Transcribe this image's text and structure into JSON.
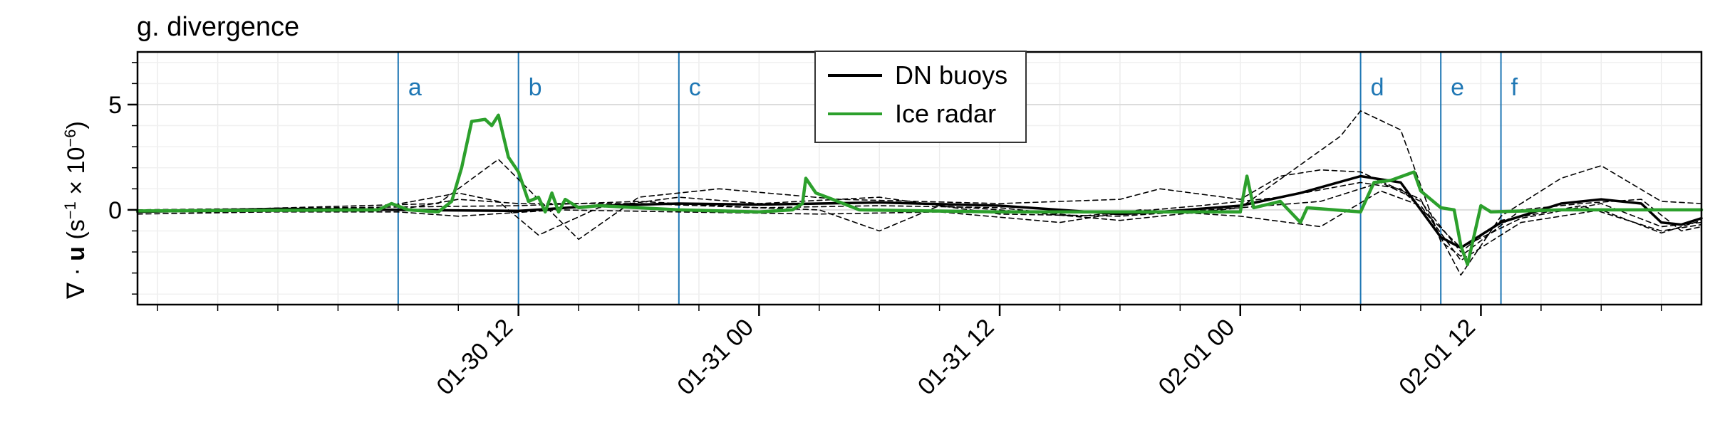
{
  "chart_data": {
    "type": "line",
    "title": "g. divergence",
    "ylabel": {
      "symbol_prefix": "∇ · ",
      "symbol_bold": "u",
      "units_open": " (s",
      "units_exp1": "−1",
      "units_times": " × 10",
      "units_exp2": "−6",
      "units_close": ")"
    },
    "xlim": [
      "2020-01-29 17:00",
      "2020-02-01 23:00"
    ],
    "ylim": [
      -4.5,
      7.5
    ],
    "yticks": [
      0,
      5
    ],
    "xticks": [
      {
        "t": "2020-01-30 12:00",
        "label": "01-30 12"
      },
      {
        "t": "2020-01-31 00:00",
        "label": "01-31 00"
      },
      {
        "t": "2020-01-31 12:00",
        "label": "01-31 12"
      },
      {
        "t": "2020-02-01 00:00",
        "label": "02-01 00"
      },
      {
        "t": "2020-02-01 12:00",
        "label": "02-01 12"
      }
    ],
    "grid": true,
    "legend_position": "top-center",
    "events": [
      {
        "label": "a",
        "t": "2020-01-30 06:00"
      },
      {
        "label": "b",
        "t": "2020-01-30 12:00"
      },
      {
        "label": "c",
        "t": "2020-01-30 20:00"
      },
      {
        "label": "d",
        "t": "2020-02-01 06:00"
      },
      {
        "label": "e",
        "t": "2020-02-01 10:00"
      },
      {
        "label": "f",
        "t": "2020-02-01 13:00"
      }
    ],
    "event_color": "#1f77b4",
    "series": [
      {
        "name": "DN buoys",
        "color": "#000000",
        "style": "solid",
        "width": 3.5,
        "points": [
          [
            "2020-01-29 17:00",
            -0.1
          ],
          [
            "2020-01-30 00:00",
            0.05
          ],
          [
            "2020-01-30 06:00",
            0.0
          ],
          [
            "2020-01-30 12:00",
            -0.05
          ],
          [
            "2020-01-30 16:00",
            0.2
          ],
          [
            "2020-01-30 20:00",
            0.3
          ],
          [
            "2020-01-31 00:00",
            0.25
          ],
          [
            "2020-01-31 06:00",
            0.35
          ],
          [
            "2020-01-31 12:00",
            0.2
          ],
          [
            "2020-01-31 15:00",
            0.0
          ],
          [
            "2020-01-31 18:00",
            -0.2
          ],
          [
            "2020-01-31 20:00",
            -0.1
          ],
          [
            "2020-02-01 00:00",
            0.2
          ],
          [
            "2020-02-01 03:00",
            0.8
          ],
          [
            "2020-02-01 06:00",
            1.6
          ],
          [
            "2020-02-01 08:00",
            1.3
          ],
          [
            "2020-02-01 10:00",
            -1.3
          ],
          [
            "2020-02-01 11:00",
            -1.8
          ],
          [
            "2020-02-01 13:00",
            -0.6
          ],
          [
            "2020-02-01 16:00",
            0.3
          ],
          [
            "2020-02-01 18:00",
            0.5
          ],
          [
            "2020-02-01 20:00",
            0.3
          ],
          [
            "2020-02-01 21:00",
            -0.6
          ],
          [
            "2020-02-01 22:00",
            -0.7
          ],
          [
            "2020-02-01 23:00",
            -0.4
          ]
        ]
      },
      {
        "name": "Ice radar",
        "color": "#2ca02c",
        "style": "solid",
        "width": 4.5,
        "points": [
          [
            "2020-01-29 17:00",
            -0.05
          ],
          [
            "2020-01-30 05:00",
            0.0
          ],
          [
            "2020-01-30 05:40",
            0.3
          ],
          [
            "2020-01-30 06:30",
            0.0
          ],
          [
            "2020-01-30 08:00",
            -0.1
          ],
          [
            "2020-01-30 08:40",
            0.4
          ],
          [
            "2020-01-30 09:10",
            2.0
          ],
          [
            "2020-01-30 09:40",
            4.2
          ],
          [
            "2020-01-30 10:20",
            4.3
          ],
          [
            "2020-01-30 10:40",
            4.0
          ],
          [
            "2020-01-30 11:00",
            4.5
          ],
          [
            "2020-01-30 11:30",
            2.5
          ],
          [
            "2020-01-30 12:00",
            1.8
          ],
          [
            "2020-01-30 12:30",
            0.4
          ],
          [
            "2020-01-30 13:00",
            0.6
          ],
          [
            "2020-01-30 13:20",
            -0.1
          ],
          [
            "2020-01-30 13:40",
            0.8
          ],
          [
            "2020-01-30 14:00",
            -0.1
          ],
          [
            "2020-01-30 14:20",
            0.5
          ],
          [
            "2020-01-30 15:00",
            0.1
          ],
          [
            "2020-01-30 16:00",
            0.2
          ],
          [
            "2020-01-30 20:00",
            0.0
          ],
          [
            "2020-01-31 00:00",
            -0.1
          ],
          [
            "2020-01-31 01:40",
            0.0
          ],
          [
            "2020-01-31 02:10",
            0.3
          ],
          [
            "2020-01-31 02:20",
            1.5
          ],
          [
            "2020-01-31 02:50",
            0.8
          ],
          [
            "2020-01-31 03:40",
            0.5
          ],
          [
            "2020-01-31 05:00",
            0.0
          ],
          [
            "2020-01-31 12:00",
            -0.1
          ],
          [
            "2020-02-01 00:00",
            -0.1
          ],
          [
            "2020-02-01 00:20",
            1.6
          ],
          [
            "2020-02-01 00:40",
            0.1
          ],
          [
            "2020-02-01 02:00",
            0.4
          ],
          [
            "2020-02-01 03:00",
            -0.6
          ],
          [
            "2020-02-01 03:20",
            0.1
          ],
          [
            "2020-02-01 06:00",
            -0.1
          ],
          [
            "2020-02-01 06:40",
            1.3
          ],
          [
            "2020-02-01 07:30",
            1.4
          ],
          [
            "2020-02-01 08:40",
            1.8
          ],
          [
            "2020-02-01 09:00",
            0.9
          ],
          [
            "2020-02-01 10:00",
            0.1
          ],
          [
            "2020-02-01 10:40",
            0.0
          ],
          [
            "2020-02-01 11:00",
            -1.7
          ],
          [
            "2020-02-01 11:20",
            -2.6
          ],
          [
            "2020-02-01 12:00",
            0.2
          ],
          [
            "2020-02-01 12:30",
            -0.1
          ],
          [
            "2020-02-01 16:00",
            0.0
          ],
          [
            "2020-02-01 23:00",
            0.0
          ]
        ]
      },
      {
        "name": "",
        "color": "#000000",
        "style": "dashed",
        "width": 1.6,
        "points": [
          [
            "2020-01-29 17:00",
            -0.2
          ],
          [
            "2020-01-30 06:00",
            0.0
          ],
          [
            "2020-01-30 09:00",
            0.5
          ],
          [
            "2020-01-30 12:00",
            0.3
          ],
          [
            "2020-01-30 18:00",
            0.3
          ],
          [
            "2020-01-31 03:00",
            0.0
          ],
          [
            "2020-01-31 06:00",
            -1.0
          ],
          [
            "2020-01-31 09:00",
            0.2
          ],
          [
            "2020-01-31 12:00",
            0.0
          ],
          [
            "2020-01-31 18:00",
            -0.5
          ],
          [
            "2020-02-01 00:00",
            0.1
          ],
          [
            "2020-02-01 05:00",
            3.5
          ],
          [
            "2020-02-01 06:00",
            4.7
          ],
          [
            "2020-02-01 08:00",
            3.8
          ],
          [
            "2020-02-01 10:00",
            -1.5
          ],
          [
            "2020-02-01 11:00",
            -2.2
          ],
          [
            "2020-02-01 14:00",
            0.0
          ],
          [
            "2020-02-01 17:00",
            0.3
          ],
          [
            "2020-02-01 20:00",
            0.5
          ],
          [
            "2020-02-01 22:00",
            -1.0
          ],
          [
            "2020-02-01 23:00",
            -0.8
          ]
        ]
      },
      {
        "name": "",
        "color": "#000000",
        "style": "dashed",
        "width": 1.6,
        "points": [
          [
            "2020-01-29 17:00",
            -0.1
          ],
          [
            "2020-01-30 08:00",
            0.3
          ],
          [
            "2020-01-30 11:00",
            2.4
          ],
          [
            "2020-01-30 13:00",
            0.5
          ],
          [
            "2020-01-30 15:00",
            -1.4
          ],
          [
            "2020-01-30 18:00",
            0.6
          ],
          [
            "2020-01-30 22:00",
            1.0
          ],
          [
            "2020-01-31 04:00",
            0.5
          ],
          [
            "2020-01-31 12:00",
            0.3
          ],
          [
            "2020-01-31 18:00",
            0.5
          ],
          [
            "2020-01-31 20:00",
            1.0
          ],
          [
            "2020-02-01 00:00",
            0.5
          ],
          [
            "2020-02-01 02:00",
            1.6
          ],
          [
            "2020-02-01 04:00",
            1.9
          ],
          [
            "2020-02-01 06:00",
            1.8
          ],
          [
            "2020-02-01 09:00",
            0.5
          ],
          [
            "2020-02-01 11:00",
            -3.1
          ],
          [
            "2020-02-01 13:00",
            -0.3
          ],
          [
            "2020-02-01 16:00",
            1.5
          ],
          [
            "2020-02-01 18:00",
            2.1
          ],
          [
            "2020-02-01 21:00",
            0.4
          ],
          [
            "2020-02-01 23:00",
            0.3
          ]
        ]
      },
      {
        "name": "",
        "color": "#000000",
        "style": "dashed",
        "width": 1.6,
        "points": [
          [
            "2020-01-29 17:00",
            0.0
          ],
          [
            "2020-01-30 05:00",
            0.1
          ],
          [
            "2020-01-30 09:00",
            0.8
          ],
          [
            "2020-01-30 11:00",
            0.4
          ],
          [
            "2020-01-30 13:00",
            -1.2
          ],
          [
            "2020-01-30 16:00",
            0.1
          ],
          [
            "2020-01-30 20:00",
            0.6
          ],
          [
            "2020-01-31 00:00",
            0.3
          ],
          [
            "2020-01-31 06:00",
            0.6
          ],
          [
            "2020-01-31 12:00",
            -0.2
          ],
          [
            "2020-01-31 18:00",
            -0.3
          ],
          [
            "2020-02-01 00:00",
            0.1
          ],
          [
            "2020-02-01 04:00",
            0.4
          ],
          [
            "2020-02-01 07:00",
            1.3
          ],
          [
            "2020-02-01 09:00",
            0.4
          ],
          [
            "2020-02-01 11:00",
            -2.0
          ],
          [
            "2020-02-01 13:00",
            -0.5
          ],
          [
            "2020-02-01 17:00",
            0.2
          ],
          [
            "2020-02-01 21:00",
            -1.0
          ],
          [
            "2020-02-01 23:00",
            -0.7
          ]
        ]
      },
      {
        "name": "",
        "color": "#000000",
        "style": "dashed",
        "width": 1.6,
        "points": [
          [
            "2020-01-29 17:00",
            -0.1
          ],
          [
            "2020-01-30 06:00",
            -0.1
          ],
          [
            "2020-01-30 09:00",
            -0.3
          ],
          [
            "2020-01-30 14:00",
            0.0
          ],
          [
            "2020-01-30 20:00",
            -0.1
          ],
          [
            "2020-01-31 03:00",
            -0.2
          ],
          [
            "2020-01-31 09:00",
            -0.1
          ],
          [
            "2020-01-31 15:00",
            -0.6
          ],
          [
            "2020-01-31 19:00",
            0.0
          ],
          [
            "2020-02-01 00:00",
            -0.3
          ],
          [
            "2020-02-01 04:00",
            -0.8
          ],
          [
            "2020-02-01 07:00",
            0.9
          ],
          [
            "2020-02-01 09:00",
            0.2
          ],
          [
            "2020-02-01 11:00",
            -2.4
          ],
          [
            "2020-02-01 14:00",
            -0.6
          ],
          [
            "2020-02-01 18:00",
            0.0
          ],
          [
            "2020-02-01 21:00",
            -1.1
          ],
          [
            "2020-02-01 23:00",
            -0.5
          ]
        ]
      },
      {
        "name": "",
        "color": "#000000",
        "style": "dashed",
        "width": 1.6,
        "points": [
          [
            "2020-01-29 17:00",
            0.0
          ],
          [
            "2020-01-30 12:00",
            0.2
          ],
          [
            "2020-01-30 18:00",
            0.4
          ],
          [
            "2020-01-31 00:00",
            0.1
          ],
          [
            "2020-01-31 06:00",
            0.2
          ],
          [
            "2020-01-31 12:00",
            0.1
          ],
          [
            "2020-01-31 16:00",
            -0.3
          ],
          [
            "2020-01-31 22:00",
            0.2
          ],
          [
            "2020-02-01 02:00",
            0.6
          ],
          [
            "2020-02-01 06:00",
            1.3
          ],
          [
            "2020-02-01 08:00",
            1.0
          ],
          [
            "2020-02-01 11:00",
            -1.8
          ],
          [
            "2020-02-01 14:00",
            -0.4
          ],
          [
            "2020-02-01 18:00",
            0.3
          ],
          [
            "2020-02-01 21:00",
            -0.8
          ],
          [
            "2020-02-01 23:00",
            -0.6
          ]
        ]
      }
    ]
  }
}
